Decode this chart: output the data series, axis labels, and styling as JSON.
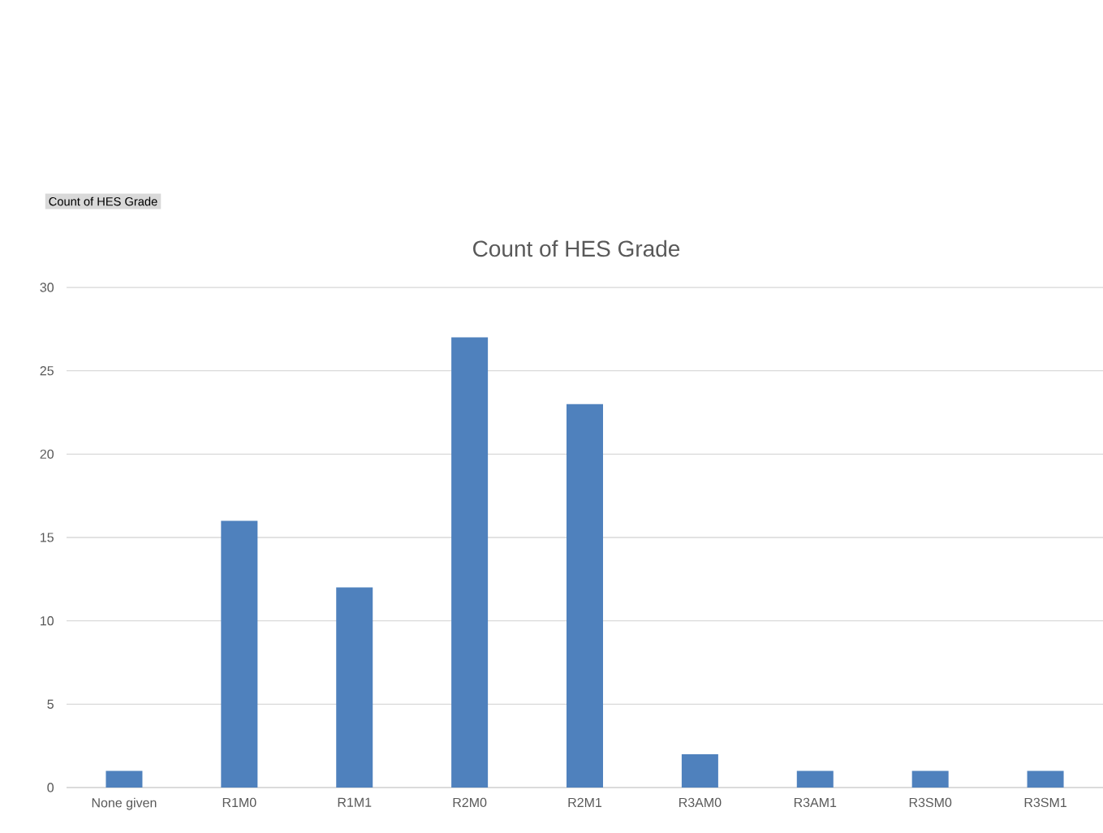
{
  "chart_data": {
    "type": "bar",
    "title": "Count of HES Grade",
    "annotations": [
      "Count of HES Grade"
    ],
    "categories": [
      "None given",
      "R1M0",
      "R1M1",
      "R2M0",
      "R2M1",
      "R3AM0",
      "R3AM1",
      "R3SM0",
      "R3SM1"
    ],
    "values": [
      1,
      16,
      12,
      27,
      23,
      2,
      1,
      1,
      1
    ],
    "color": "#4f81bd",
    "ylim": [
      0,
      30
    ],
    "yticks": [
      0,
      5,
      10,
      15,
      20,
      25,
      30
    ],
    "grid": "y"
  }
}
